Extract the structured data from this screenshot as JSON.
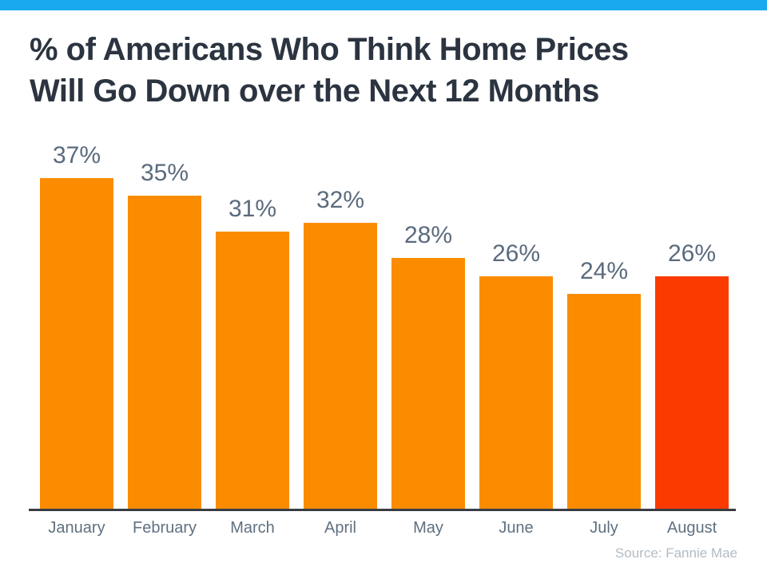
{
  "accent": {
    "top_bar_color": "#18aaec"
  },
  "header": {
    "title_line1": "% of Americans Who Think Home Prices",
    "title_line2": "Will Go Down over the Next 12 Months"
  },
  "chart_data": {
    "type": "bar",
    "title": "% of Americans Who Think Home Prices Will Go Down over the Next 12 Months",
    "categories": [
      "January",
      "February",
      "March",
      "April",
      "May",
      "June",
      "July",
      "August"
    ],
    "values": [
      37,
      35,
      31,
      32,
      28,
      26,
      24,
      26
    ],
    "value_labels": [
      "37%",
      "35%",
      "31%",
      "32%",
      "28%",
      "26%",
      "24%",
      "26%"
    ],
    "bar_color_default": "#fb8c00",
    "bar_color_highlight": "#fb3a00",
    "highlight_index": 7,
    "xlabel": "",
    "ylabel": "",
    "ylim": [
      0,
      40
    ],
    "grid": false,
    "legend": "none",
    "source": "Source: Fannie Mae"
  },
  "colors": {
    "background": "#ffffff",
    "title": "#2b3440",
    "value_label": "#5a6b7d",
    "category_label": "#5f7080",
    "axis_line": "#383d44",
    "source_text": "#b3bcc4"
  },
  "footer": {
    "source_label": "Source: Fannie Mae"
  }
}
